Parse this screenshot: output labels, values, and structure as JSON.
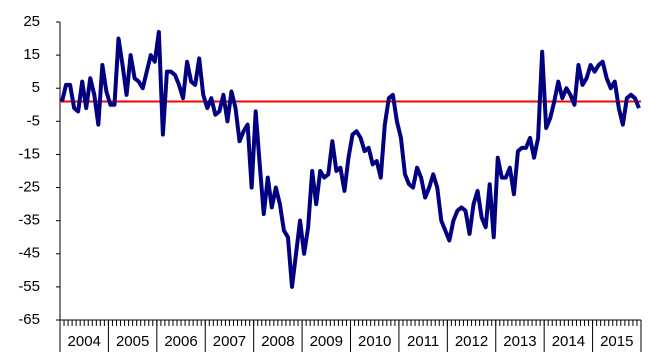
{
  "chart_data": {
    "type": "line",
    "categories": [
      "2004",
      null,
      null,
      null,
      null,
      null,
      null,
      null,
      null,
      null,
      null,
      null,
      "2005",
      null,
      null,
      null,
      null,
      null,
      null,
      null,
      null,
      null,
      null,
      null,
      "2006",
      null,
      null,
      null,
      null,
      null,
      null,
      null,
      null,
      null,
      null,
      null,
      "2007",
      null,
      null,
      null,
      null,
      null,
      null,
      null,
      null,
      null,
      null,
      null,
      "2008",
      null,
      null,
      null,
      null,
      null,
      null,
      null,
      null,
      null,
      null,
      null,
      "2009",
      null,
      null,
      null,
      null,
      null,
      null,
      null,
      null,
      null,
      null,
      null,
      "2010",
      null,
      null,
      null,
      null,
      null,
      null,
      null,
      null,
      null,
      null,
      null,
      "2011",
      null,
      null,
      null,
      null,
      null,
      null,
      null,
      null,
      null,
      null,
      null,
      "2012",
      null,
      null,
      null,
      null,
      null,
      null,
      null,
      null,
      null,
      null,
      null,
      "2013",
      null,
      null,
      null,
      null,
      null,
      null,
      null,
      null,
      null,
      null,
      null,
      "2014",
      null,
      null,
      null,
      null,
      null,
      null,
      null,
      null,
      null,
      null,
      null,
      "2015",
      null,
      null,
      null,
      null,
      null,
      null,
      null,
      null,
      null,
      null,
      null
    ],
    "series": [
      {
        "color": "#000080",
        "values": [
          1,
          6,
          6,
          -1,
          -2,
          7,
          -1,
          8,
          3,
          -6,
          12,
          4,
          0,
          0,
          20,
          12,
          3,
          15,
          8,
          7,
          5,
          10,
          15,
          13,
          22,
          -9,
          10,
          10,
          9,
          6,
          2,
          13,
          7,
          6,
          14,
          3,
          -1,
          2,
          -3,
          -2,
          3,
          -5,
          4,
          -1,
          -11,
          -8,
          -6,
          -25,
          -2,
          -18,
          -33,
          -22,
          -31,
          -25,
          -30,
          -38,
          -40,
          -55,
          -45,
          -35,
          -45,
          -37,
          -20,
          -30,
          -20,
          -22,
          -21,
          -11,
          -20,
          -19,
          -26,
          -16,
          -9,
          -8,
          -10,
          -14,
          -13,
          -18,
          -17,
          -22,
          -6,
          2,
          3,
          -5,
          -10,
          -21,
          -24,
          -25,
          -19,
          -22,
          -28,
          -25,
          -21,
          -25,
          -35,
          -38,
          -41,
          -35,
          -32,
          -31,
          -32,
          -39,
          -30,
          -26,
          -34,
          -37,
          -24,
          -40,
          -16,
          -22,
          -22,
          -19,
          -27,
          -14,
          -13,
          -13,
          -10,
          -16,
          -10,
          16,
          -7,
          -4,
          1,
          7,
          2,
          5,
          3,
          0,
          12,
          6,
          8,
          12,
          10,
          12,
          13,
          8,
          5,
          7,
          -1,
          -6,
          2,
          3,
          2,
          -1
        ]
      }
    ],
    "reference_line": {
      "value": 1,
      "color": "#ff0000"
    },
    "ylim": [
      -65,
      25
    ],
    "yticks": [
      -65,
      -55,
      -45,
      -35,
      -25,
      -15,
      -5,
      5,
      15,
      25
    ],
    "grid": false
  }
}
